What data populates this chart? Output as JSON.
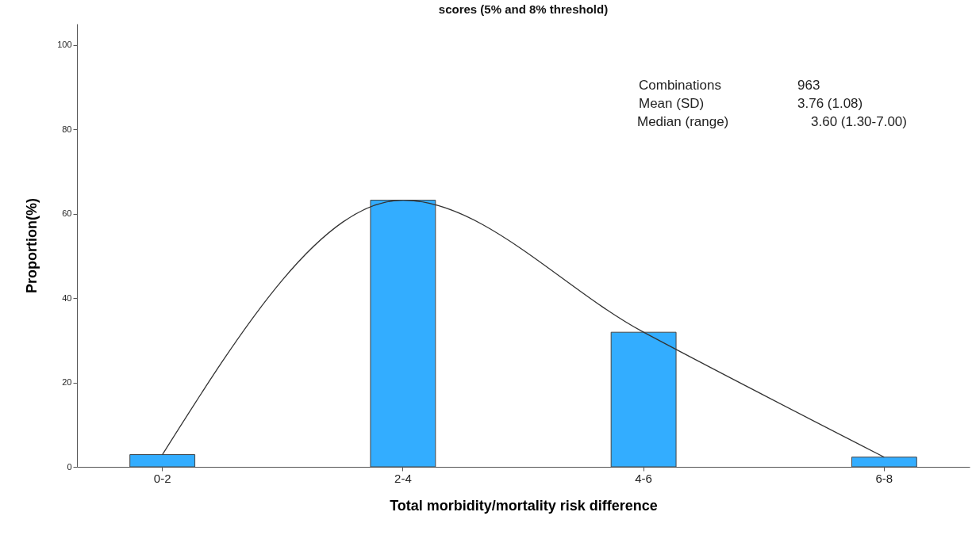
{
  "chart_data": {
    "type": "bar",
    "title": "scores (5% and 8% threshold)",
    "xlabel": "Total morbidity/mortality risk difference",
    "ylabel": "Proportion(%)",
    "categories": [
      "0-2",
      "2-4",
      "4-6",
      "6-8"
    ],
    "series": [
      {
        "color": "#33adff",
        "values": [
          2.9,
          63.2,
          31.9,
          2.3
        ]
      },
      {
        "type": "line",
        "color": "#333333",
        "values": [
          2.9,
          63.2,
          31.9,
          2.3
        ]
      }
    ],
    "ylim": [
      0,
      105
    ],
    "yticks": [
      0,
      20,
      40,
      60,
      80,
      100
    ],
    "annotations": [
      "Combinations",
      "963",
      "Mean (SD)",
      "3.76 (1.08)",
      "Median (range)",
      "3.60 (1.30-7.00)"
    ]
  }
}
